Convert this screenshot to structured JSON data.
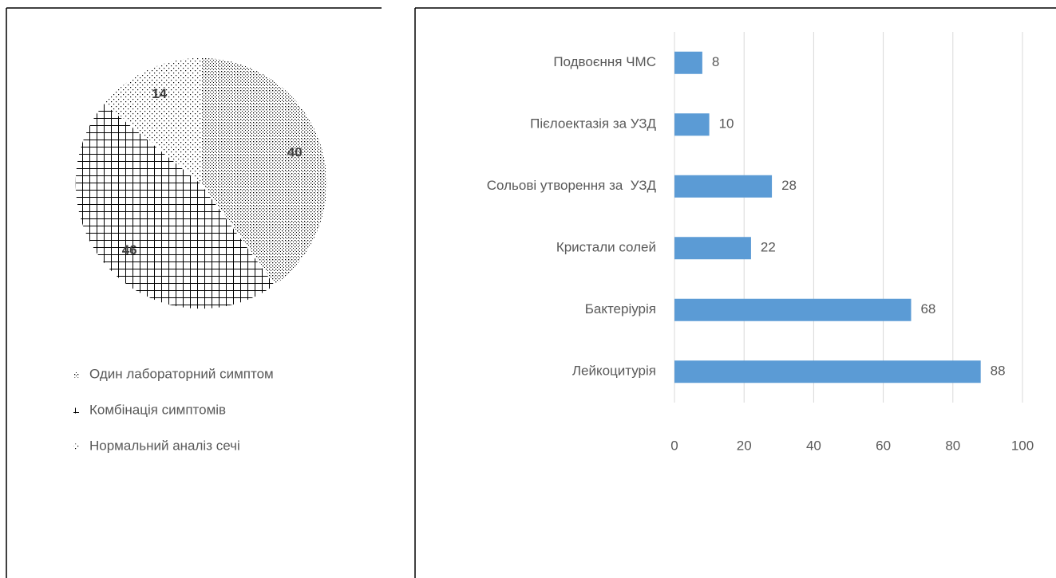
{
  "chart_data": [
    {
      "type": "pie",
      "categories": [
        "Один лабораторний симптом",
        "Комбінація симптомів",
        "Нормальний аналіз сечі"
      ],
      "values": [
        40,
        46,
        14
      ],
      "patterns": [
        "dots-dense",
        "grid",
        "dots-sparse"
      ]
    },
    {
      "type": "bar",
      "orientation": "horizontal",
      "categories": [
        "Подвоєння ЧМС",
        "Пієлоектазія за УЗД",
        "Сольові утворення за  УЗД",
        "Кристали солей",
        "Бактеріурія",
        "Лейкоцитурія"
      ],
      "values": [
        8,
        10,
        28,
        22,
        68,
        88
      ],
      "color": "#5b9bd5",
      "xlim": [
        0,
        100
      ],
      "xticks": [
        0,
        20,
        40,
        60,
        80,
        100
      ],
      "grid": true
    }
  ]
}
